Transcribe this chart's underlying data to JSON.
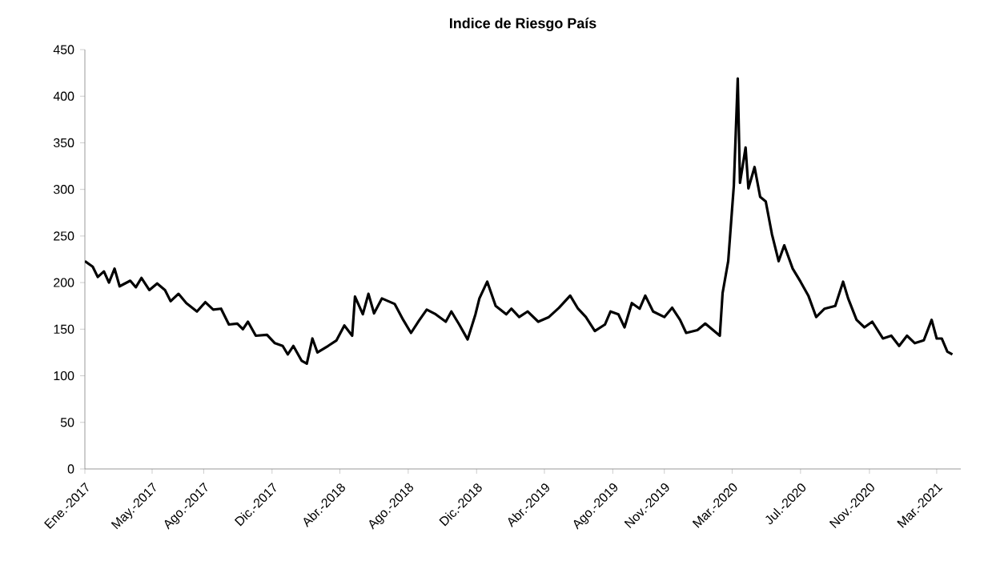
{
  "chart_data": {
    "type": "line",
    "title": "Indice de Riesgo País",
    "x": [
      "2017-01-01",
      "2017-01-15",
      "2017-01-24",
      "2017-02-04",
      "2017-02-13",
      "2017-02-23",
      "2017-03-04",
      "2017-03-23",
      "2017-04-02",
      "2017-04-12",
      "2017-04-26",
      "2017-05-10",
      "2017-05-24",
      "2017-06-03",
      "2017-06-17",
      "2017-07-01",
      "2017-07-20",
      "2017-08-04",
      "2017-08-18",
      "2017-09-01",
      "2017-09-15",
      "2017-09-30",
      "2017-10-10",
      "2017-10-19",
      "2017-11-02",
      "2017-11-22",
      "2017-12-06",
      "2017-12-20",
      "2017-12-29",
      "2018-01-08",
      "2018-01-23",
      "2018-02-01",
      "2018-02-11",
      "2018-02-20",
      "2018-03-11",
      "2018-03-26",
      "2018-04-09",
      "2018-04-23",
      "2018-04-28",
      "2018-05-12",
      "2018-05-22",
      "2018-06-01",
      "2018-06-15",
      "2018-07-08",
      "2018-07-23",
      "2018-08-06",
      "2018-08-20",
      "2018-09-03",
      "2018-09-19",
      "2018-10-07",
      "2018-10-17",
      "2018-10-31",
      "2018-11-15",
      "2018-11-29",
      "2018-12-06",
      "2018-12-20",
      "2019-01-04",
      "2019-01-23",
      "2019-02-01",
      "2019-02-15",
      "2019-03-02",
      "2019-03-21",
      "2019-04-09",
      "2019-04-27",
      "2019-05-17",
      "2019-05-31",
      "2019-06-14",
      "2019-06-30",
      "2019-07-18",
      "2019-07-28",
      "2019-08-11",
      "2019-08-22",
      "2019-09-04",
      "2019-09-18",
      "2019-09-28",
      "2019-10-12",
      "2019-11-01",
      "2019-11-15",
      "2019-11-29",
      "2019-12-10",
      "2019-12-30",
      "2020-01-13",
      "2020-02-08",
      "2020-02-13",
      "2020-02-23",
      "2020-03-04",
      "2020-03-11",
      "2020-03-15",
      "2020-03-25",
      "2020-03-30",
      "2020-04-10",
      "2020-04-20",
      "2020-04-30",
      "2020-05-11",
      "2020-05-23",
      "2020-06-02",
      "2020-06-17",
      "2020-07-01",
      "2020-07-15",
      "2020-07-29",
      "2020-08-13",
      "2020-09-01",
      "2020-09-15",
      "2020-09-24",
      "2020-10-09",
      "2020-10-23",
      "2020-11-06",
      "2020-11-25",
      "2020-12-10",
      "2020-12-24",
      "2021-01-07",
      "2021-01-21",
      "2021-02-06",
      "2021-02-20",
      "2021-03-01",
      "2021-03-10",
      "2021-03-20",
      "2021-03-29"
    ],
    "series": [
      {
        "color": "#000000",
        "values": [
          223,
          217,
          206,
          212,
          200,
          215,
          196,
          202,
          195,
          205,
          192,
          199,
          192,
          180,
          188,
          178,
          169,
          179,
          171,
          172,
          155,
          156,
          150,
          158,
          143,
          144,
          135,
          132,
          123,
          132,
          116,
          113,
          140,
          125,
          132,
          138,
          154,
          143,
          185,
          166,
          188,
          167,
          183,
          177,
          160,
          146,
          159,
          171,
          166,
          158,
          169,
          155,
          139,
          166,
          183,
          201,
          175,
          166,
          172,
          163,
          169,
          158,
          163,
          173,
          186,
          172,
          163,
          148,
          155,
          169,
          166,
          152,
          178,
          172,
          186,
          169,
          163,
          173,
          160,
          146,
          149,
          156,
          143,
          189,
          223,
          304,
          419,
          307,
          345,
          301,
          324,
          292,
          287,
          252,
          223,
          240,
          215,
          201,
          186,
          163,
          172,
          175,
          201,
          183,
          160,
          152,
          158,
          140,
          143,
          132,
          143,
          135,
          138,
          160,
          140,
          140,
          126,
          123
        ]
      }
    ],
    "xlim": [
      "2017-01-01",
      "2021-04-13"
    ],
    "xticks": [
      {
        "value": "2017-01",
        "label": "Ene.-2017"
      },
      {
        "value": "2017-05",
        "label": "May.-2017"
      },
      {
        "value": "2017-08",
        "label": "Ago.-2017"
      },
      {
        "value": "2017-12",
        "label": "Dic.-2017"
      },
      {
        "value": "2018-04",
        "label": "Abr.-2018"
      },
      {
        "value": "2018-08",
        "label": "Ago.-2018"
      },
      {
        "value": "2018-12",
        "label": "Dic.-2018"
      },
      {
        "value": "2019-04",
        "label": "Abr.-2019"
      },
      {
        "value": "2019-08",
        "label": "Ago.-2019"
      },
      {
        "value": "2019-11",
        "label": "Nov.-2019"
      },
      {
        "value": "2020-03",
        "label": "Mar.-2020"
      },
      {
        "value": "2020-07",
        "label": "Jul.-2020"
      },
      {
        "value": "2020-11",
        "label": "Nov.-2020"
      },
      {
        "value": "2021-03",
        "label": "Mar.-2021"
      }
    ],
    "ylim": [
      0,
      450
    ],
    "yticks": [
      0,
      50,
      100,
      150,
      200,
      250,
      300,
      350,
      400,
      450
    ]
  }
}
